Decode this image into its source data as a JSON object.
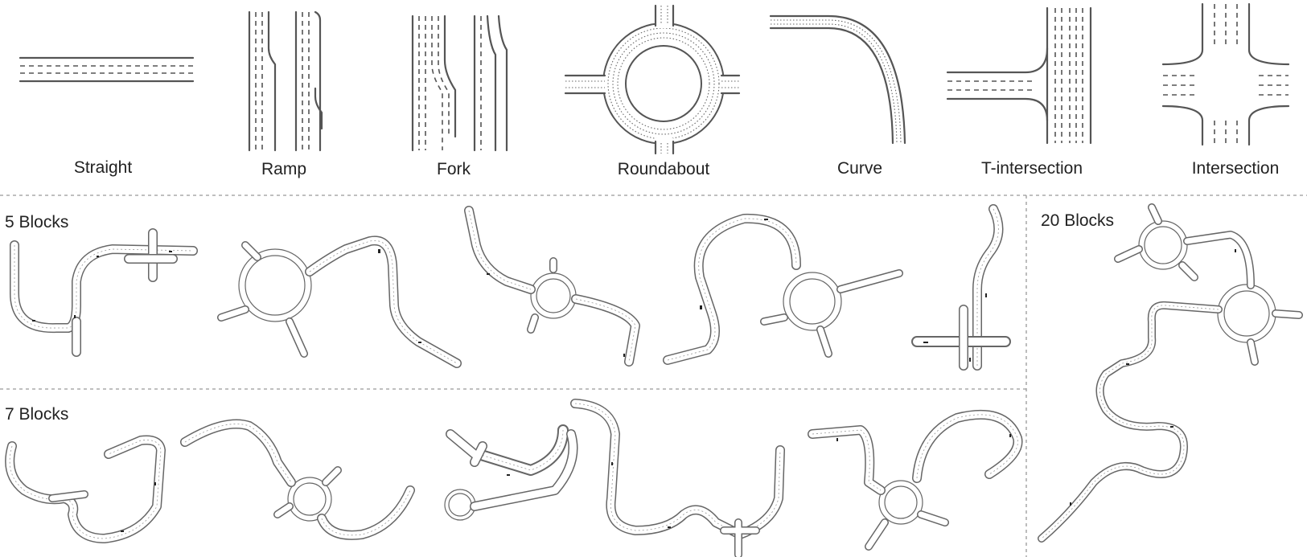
{
  "blocks": [
    {
      "label": "Straight"
    },
    {
      "label": "Ramp"
    },
    {
      "label": "Fork"
    },
    {
      "label": "Roundabout"
    },
    {
      "label": "Curve"
    },
    {
      "label": "T-intersection"
    },
    {
      "label": "Intersection"
    }
  ],
  "sections": {
    "five": "5 Blocks",
    "seven": "7 Blocks",
    "twenty": "20 Blocks"
  }
}
